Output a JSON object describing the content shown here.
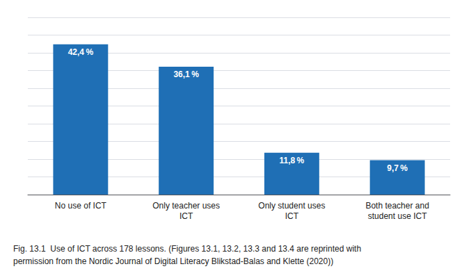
{
  "chart_data": {
    "type": "bar",
    "title": "Fig. 13.1  Use of ICT across 178 lessons. (Figures 13.1, 13.2, 13.3 and 13.4 are reprinted with\npermission from the Nordic Journal of Digital Literacy Blikstad-Balas and Klette (2020))",
    "categories": [
      "No use of ICT",
      "Only teacher uses\nICT",
      "Only student uses\nICT",
      "Both teacher and\nstudent use ICT"
    ],
    "values": [
      42.4,
      36.1,
      11.8,
      9.7
    ],
    "value_labels": [
      "42,4 %",
      "36,1 %",
      "11,8 %",
      "9,7 %"
    ],
    "color": "#1f6fb5",
    "ylim": [
      0,
      50
    ],
    "yticks": [
      0,
      5,
      10,
      15,
      20,
      25,
      30,
      35,
      40,
      45,
      50
    ],
    "grid": true,
    "data_labels": true,
    "tick_labels": "x"
  }
}
